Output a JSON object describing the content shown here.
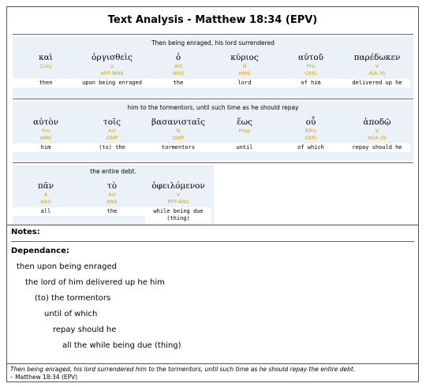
{
  "title": "Text Analysis - Matthew 18:34 (EPV)",
  "segments": [
    {
      "gloss": "Then being enraged, his lord surrendered",
      "words": [
        {
          "greek": "καὶ",
          "pos": "Conj",
          "parse": "",
          "eng": "then"
        },
        {
          "greek": "ὀργισθεὶς",
          "pos": "V",
          "parse": "APP-NMS",
          "eng": "upon being enraged"
        },
        {
          "greek": "ὁ",
          "pos": "Art",
          "parse": "NMS",
          "eng": "the"
        },
        {
          "greek": "κύριος",
          "pos": "N",
          "parse": "NMS",
          "eng": "lord"
        },
        {
          "greek": "αὐτοῦ",
          "pos": "Pro",
          "parse": "GMS",
          "eng": "of him"
        },
        {
          "greek": "παρέδωκεν",
          "pos": "V",
          "parse": "AIA-3S",
          "eng": "delivered up he"
        }
      ]
    },
    {
      "gloss": "him to the tormentors, until such time as he should repay",
      "words": [
        {
          "greek": "αὐτὸν",
          "pos": "Pro",
          "parse": "AMS",
          "eng": "him"
        },
        {
          "greek": "τοῖς",
          "pos": "Art",
          "parse": "DMP",
          "eng": "(to) the"
        },
        {
          "greek": "βασανισταῖς",
          "pos": "N",
          "parse": "DMP",
          "eng": "tormentors"
        },
        {
          "greek": "ἕως",
          "pos": "Prep",
          "parse": "",
          "eng": "until"
        },
        {
          "greek": "οὗ",
          "pos": "RPro",
          "parse": "GMS",
          "eng": "of which"
        },
        {
          "greek": "ἀποδῷ",
          "pos": "V",
          "parse": "ASA-3S",
          "eng": "repay should he"
        }
      ]
    },
    {
      "gloss": "the entire debt.",
      "words": [
        {
          "greek": "πᾶν",
          "pos": "A",
          "parse": "ANS",
          "eng": "all"
        },
        {
          "greek": "τὸ",
          "pos": "Art",
          "parse": "ANS",
          "eng": "the"
        },
        {
          "greek": "ὀφειλόμενον",
          "pos": "V",
          "parse": "PPP-ANS",
          "eng": "while being due (thing)"
        }
      ]
    }
  ],
  "notes_label": "Notes:",
  "dependance_label": "Dependance:",
  "dependance": [
    "then upon being enraged",
    "the lord of him delivered up he him",
    "(to) the tormentors",
    "until of which",
    "repay should he",
    "all the while being due (thing)"
  ],
  "footer": {
    "quote": "Then being enraged, his lord surrendered him to the tormentors, until such time as he should repay the entire debt.",
    "ref": "– Matthew 18:34 (EPV)"
  }
}
